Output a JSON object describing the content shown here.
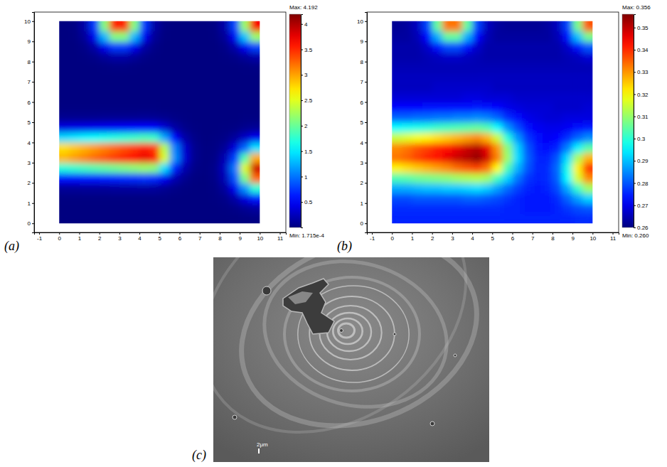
{
  "chart_data": [
    {
      "type": "heatmap",
      "label": "(a)",
      "x": [
        0.25,
        0.75,
        1.25,
        1.75,
        2.25,
        2.75,
        3.25,
        3.75,
        4.25,
        4.75,
        5.25,
        5.75,
        6.25,
        6.75,
        7.25,
        7.75,
        8.25,
        8.75,
        9.25,
        9.75
      ],
      "y": [
        0.25,
        0.75,
        1.25,
        1.75,
        2.25,
        2.75,
        3.25,
        3.75,
        4.25,
        4.75,
        5.25,
        5.75,
        6.25,
        6.75,
        7.25,
        7.75,
        8.25,
        8.75,
        9.25,
        9.75
      ],
      "values": [
        [
          0,
          0,
          0,
          0,
          0,
          0,
          0,
          0,
          0,
          0,
          0,
          0,
          0,
          0,
          0,
          0,
          0,
          0,
          0.01,
          0.02
        ],
        [
          0,
          0,
          0,
          0,
          0,
          0,
          0,
          0,
          0,
          0,
          0,
          0,
          0,
          0,
          0,
          0,
          0.01,
          0.03,
          0.08,
          0.13
        ],
        [
          0.01,
          0.01,
          0.01,
          0.01,
          0.01,
          0.01,
          0.01,
          0.01,
          0.01,
          0.01,
          0.01,
          0,
          0,
          0,
          0,
          0.01,
          0.04,
          0.16,
          0.38,
          0.6
        ],
        [
          0.1,
          0.1,
          0.11,
          0.11,
          0.11,
          0.12,
          0.12,
          0.13,
          0.13,
          0.12,
          0.08,
          0.04,
          0.01,
          0,
          0,
          0.02,
          0.12,
          0.46,
          1.12,
          1.74
        ],
        [
          0.56,
          0.58,
          0.6,
          0.62,
          0.64,
          0.66,
          0.68,
          0.7,
          0.72,
          0.69,
          0.47,
          0.21,
          0.07,
          0.01,
          0,
          0.04,
          0.22,
          0.85,
          2.08,
          3.24
        ],
        [
          1.71,
          1.77,
          1.83,
          1.9,
          1.96,
          2.02,
          2.08,
          2.14,
          2.2,
          2.13,
          1.44,
          0.66,
          0.2,
          0.04,
          0.01,
          0.05,
          0.27,
          1.02,
          2.48,
          3.87
        ],
        [
          2.91,
          3.02,
          3.12,
          3.23,
          3.33,
          3.44,
          3.54,
          3.65,
          3.75,
          3.63,
          2.46,
          1.13,
          0.35,
          0.07,
          0.01,
          0.03,
          0.21,
          0.78,
          1.9,
          2.96
        ],
        [
          2.75,
          2.85,
          2.94,
          3.04,
          3.14,
          3.24,
          3.34,
          3.44,
          3.54,
          3.43,
          2.32,
          1.06,
          0.33,
          0.07,
          0.01,
          0.02,
          0.1,
          0.38,
          0.93,
          1.45
        ],
        [
          1.43,
          1.48,
          1.54,
          1.59,
          1.64,
          1.69,
          1.74,
          1.79,
          1.85,
          1.79,
          1.21,
          0.55,
          0.17,
          0.04,
          0,
          0.01,
          0.03,
          0.12,
          0.29,
          0.46
        ],
        [
          0.41,
          0.43,
          0.44,
          0.46,
          0.47,
          0.49,
          0.5,
          0.52,
          0.53,
          0.51,
          0.35,
          0.16,
          0.05,
          0.01,
          0,
          0,
          0.01,
          0.02,
          0.06,
          0.09
        ],
        [
          0.07,
          0.07,
          0.07,
          0.07,
          0.08,
          0.08,
          0.08,
          0.08,
          0.09,
          0.08,
          0.06,
          0.03,
          0.01,
          0,
          0,
          0,
          0,
          0,
          0.01,
          0.01
        ],
        [
          0.01,
          0.01,
          0.01,
          0.01,
          0.01,
          0.01,
          0.01,
          0.01,
          0.01,
          0.01,
          0,
          0,
          0,
          0,
          0,
          0,
          0,
          0,
          0,
          0
        ],
        [
          0,
          0,
          0,
          0,
          0,
          0,
          0,
          0,
          0,
          0,
          0,
          0,
          0,
          0,
          0,
          0,
          0,
          0,
          0,
          0
        ],
        [
          0,
          0,
          0,
          0,
          0,
          0,
          0,
          0,
          0,
          0,
          0,
          0,
          0,
          0,
          0,
          0,
          0,
          0,
          0,
          0
        ],
        [
          0,
          0,
          0,
          0,
          0,
          0,
          0,
          0,
          0,
          0,
          0,
          0,
          0,
          0,
          0,
          0,
          0,
          0,
          0,
          0
        ],
        [
          0,
          0,
          0,
          0,
          0.01,
          0.02,
          0.02,
          0.01,
          0,
          0,
          0,
          0,
          0,
          0,
          0,
          0,
          0,
          0,
          0.01,
          0.02
        ],
        [
          0,
          0,
          0.01,
          0.04,
          0.1,
          0.16,
          0.16,
          0.1,
          0.04,
          0.01,
          0,
          0,
          0,
          0,
          0,
          0,
          0.01,
          0.04,
          0.1,
          0.17
        ],
        [
          0,
          0,
          0.04,
          0.16,
          0.46,
          0.76,
          0.76,
          0.46,
          0.16,
          0.04,
          0,
          0,
          0,
          0,
          0,
          0,
          0.04,
          0.17,
          0.48,
          0.8
        ],
        [
          0,
          0.01,
          0.1,
          0.46,
          1.27,
          2.11,
          2.11,
          1.27,
          0.46,
          0.1,
          0.01,
          0,
          0,
          0,
          0,
          0.01,
          0.1,
          0.48,
          1.33,
          2.21
        ],
        [
          0,
          0.02,
          0.16,
          0.76,
          2.11,
          3.52,
          3.52,
          2.11,
          0.76,
          0.16,
          0.02,
          0,
          0,
          0,
          0,
          0.02,
          0.17,
          0.8,
          2.21,
          3.69
        ]
      ],
      "xlim": [
        -1.25,
        11.3
      ],
      "ylim": [
        -0.45,
        10.45
      ],
      "xticks": [
        -1,
        0,
        1,
        2,
        3,
        4,
        5,
        6,
        7,
        8,
        9,
        10,
        11
      ],
      "yticks": [
        0,
        1,
        2,
        3,
        4,
        5,
        6,
        7,
        8,
        9,
        10
      ],
      "colorbar": {
        "range": [
          0.0001715,
          4.192
        ],
        "ticks": [
          0.5,
          1,
          1.5,
          2,
          2.5,
          3,
          3.5,
          4
        ],
        "max_label": "Max: 4.192",
        "min_label": "Min: 1.715e-4"
      }
    },
    {
      "type": "heatmap",
      "label": "(b)",
      "x": [
        0.25,
        0.75,
        1.25,
        1.75,
        2.25,
        2.75,
        3.25,
        3.75,
        4.25,
        4.75,
        5.25,
        5.75,
        6.25,
        6.75,
        7.25,
        7.75,
        8.25,
        8.75,
        9.25,
        9.75
      ],
      "y": [
        0.25,
        0.75,
        1.25,
        1.75,
        2.25,
        2.75,
        3.25,
        3.75,
        4.25,
        4.75,
        5.25,
        5.75,
        6.25,
        6.75,
        7.25,
        7.75,
        8.25,
        8.75,
        9.25,
        9.75
      ],
      "values": [
        [
          0.275,
          0.275,
          0.275,
          0.275,
          0.275,
          0.275,
          0.275,
          0.275,
          0.275,
          0.275,
          0.275,
          0.275,
          0.275,
          0.275,
          0.275,
          0.275,
          0.275,
          0.275,
          0.276,
          0.276
        ],
        [
          0.276,
          0.276,
          0.276,
          0.276,
          0.276,
          0.276,
          0.276,
          0.276,
          0.276,
          0.276,
          0.276,
          0.275,
          0.275,
          0.274,
          0.274,
          0.274,
          0.275,
          0.277,
          0.279,
          0.28
        ],
        [
          0.279,
          0.279,
          0.28,
          0.28,
          0.28,
          0.28,
          0.28,
          0.281,
          0.281,
          0.28,
          0.279,
          0.277,
          0.275,
          0.274,
          0.274,
          0.274,
          0.276,
          0.281,
          0.287,
          0.292
        ],
        [
          0.288,
          0.288,
          0.289,
          0.29,
          0.29,
          0.291,
          0.291,
          0.292,
          0.293,
          0.291,
          0.287,
          0.282,
          0.278,
          0.275,
          0.274,
          0.275,
          0.279,
          0.288,
          0.301,
          0.311
        ],
        [
          0.303,
          0.304,
          0.306,
          0.307,
          0.308,
          0.309,
          0.311,
          0.312,
          0.313,
          0.311,
          0.302,
          0.292,
          0.283,
          0.277,
          0.275,
          0.276,
          0.281,
          0.296,
          0.316,
          0.331
        ],
        [
          0.321,
          0.323,
          0.325,
          0.327,
          0.329,
          0.331,
          0.334,
          0.336,
          0.338,
          0.333,
          0.32,
          0.303,
          0.289,
          0.28,
          0.275,
          0.276,
          0.282,
          0.298,
          0.321,
          0.339
        ],
        [
          0.333,
          0.335,
          0.338,
          0.341,
          0.343,
          0.346,
          0.349,
          0.351,
          0.354,
          0.348,
          0.332,
          0.311,
          0.293,
          0.281,
          0.275,
          0.275,
          0.28,
          0.293,
          0.312,
          0.327
        ],
        [
          0.331,
          0.333,
          0.336,
          0.338,
          0.341,
          0.343,
          0.346,
          0.349,
          0.351,
          0.346,
          0.33,
          0.309,
          0.292,
          0.28,
          0.274,
          0.273,
          0.275,
          0.284,
          0.295,
          0.304
        ],
        [
          0.315,
          0.317,
          0.319,
          0.321,
          0.323,
          0.325,
          0.327,
          0.329,
          0.331,
          0.327,
          0.315,
          0.299,
          0.286,
          0.277,
          0.273,
          0.271,
          0.272,
          0.276,
          0.281,
          0.285
        ],
        [
          0.296,
          0.297,
          0.298,
          0.299,
          0.301,
          0.302,
          0.303,
          0.304,
          0.305,
          0.303,
          0.296,
          0.286,
          0.279,
          0.273,
          0.271,
          0.27,
          0.27,
          0.271,
          0.273,
          0.274
        ],
        [
          0.281,
          0.281,
          0.282,
          0.282,
          0.283,
          0.283,
          0.284,
          0.284,
          0.285,
          0.284,
          0.281,
          0.276,
          0.273,
          0.27,
          0.269,
          0.268,
          0.268,
          0.269,
          0.269,
          0.269
        ],
        [
          0.272,
          0.272,
          0.272,
          0.273,
          0.273,
          0.273,
          0.273,
          0.273,
          0.274,
          0.273,
          0.272,
          0.27,
          0.269,
          0.268,
          0.268,
          0.268,
          0.267,
          0.267,
          0.267,
          0.268
        ],
        [
          0.268,
          0.268,
          0.268,
          0.268,
          0.268,
          0.268,
          0.268,
          0.269,
          0.269,
          0.268,
          0.268,
          0.268,
          0.267,
          0.267,
          0.267,
          0.267,
          0.267,
          0.267,
          0.267,
          0.267
        ],
        [
          0.266,
          0.266,
          0.266,
          0.266,
          0.267,
          0.267,
          0.267,
          0.267,
          0.267,
          0.267,
          0.266,
          0.266,
          0.266,
          0.266,
          0.266,
          0.266,
          0.266,
          0.266,
          0.266,
          0.266
        ],
        [
          0.266,
          0.266,
          0.266,
          0.266,
          0.266,
          0.266,
          0.266,
          0.266,
          0.266,
          0.266,
          0.266,
          0.266,
          0.266,
          0.266,
          0.266,
          0.266,
          0.266,
          0.266,
          0.266,
          0.266
        ],
        [
          0.265,
          0.265,
          0.265,
          0.265,
          0.265,
          0.265,
          0.265,
          0.265,
          0.265,
          0.265,
          0.265,
          0.265,
          0.265,
          0.265,
          0.265,
          0.265,
          0.265,
          0.265,
          0.265,
          0.265
        ],
        [
          0.264,
          0.264,
          0.264,
          0.265,
          0.266,
          0.267,
          0.267,
          0.266,
          0.265,
          0.264,
          0.264,
          0.264,
          0.264,
          0.264,
          0.264,
          0.264,
          0.264,
          0.265,
          0.266,
          0.268
        ],
        [
          0.264,
          0.264,
          0.264,
          0.267,
          0.273,
          0.279,
          0.279,
          0.273,
          0.267,
          0.264,
          0.264,
          0.264,
          0.264,
          0.264,
          0.264,
          0.264,
          0.264,
          0.267,
          0.273,
          0.28
        ],
        [
          0.263,
          0.263,
          0.265,
          0.272,
          0.288,
          0.305,
          0.305,
          0.288,
          0.272,
          0.265,
          0.263,
          0.263,
          0.263,
          0.263,
          0.263,
          0.263,
          0.265,
          0.273,
          0.29,
          0.307
        ],
        [
          0.262,
          0.263,
          0.266,
          0.278,
          0.305,
          0.333,
          0.333,
          0.305,
          0.278,
          0.266,
          0.263,
          0.262,
          0.262,
          0.262,
          0.262,
          0.263,
          0.266,
          0.278,
          0.307,
          0.336
        ]
      ],
      "xlim": [
        -1.25,
        11.3
      ],
      "ylim": [
        -0.45,
        10.45
      ],
      "xticks": [
        -1,
        0,
        1,
        2,
        3,
        4,
        5,
        6,
        7,
        8,
        9,
        10,
        11
      ],
      "yticks": [
        0,
        1,
        2,
        3,
        4,
        5,
        6,
        7,
        8,
        9,
        10
      ],
      "colorbar": {
        "range": [
          0.26,
          0.356
        ],
        "ticks": [
          0.26,
          0.27,
          0.28,
          0.29,
          0.3,
          0.31,
          0.32,
          0.33,
          0.34,
          0.35
        ],
        "max_label": "Max: 0.356",
        "min_label": "Min: 0.260"
      }
    }
  ],
  "image": {
    "label": "(c)",
    "scale_bar": "2μm"
  }
}
